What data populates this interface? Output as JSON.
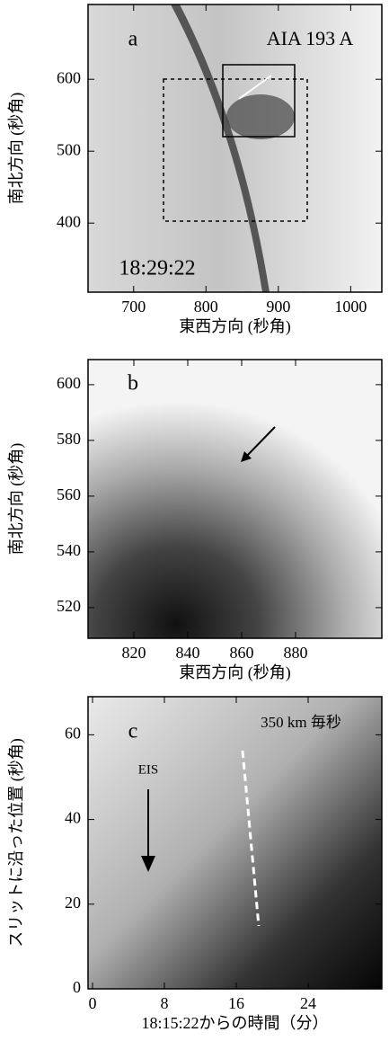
{
  "chart_data": [
    {
      "type": "image",
      "x_label": "東西方向 (秒角)",
      "y_label": "南北方向 (秒角)",
      "annotations": [
        "a",
        "AIA 193 A",
        "18:29:22"
      ],
      "xlim": [
        637,
        1043
      ],
      "ylim": [
        304,
        704
      ],
      "xticks": [
        700,
        800,
        900,
        1000
      ],
      "yticks": [
        400,
        500,
        600
      ]
    },
    {
      "type": "image",
      "x_label": "東西方向 (秒角)",
      "y_label": "南北方向 (秒角)",
      "annotations": [
        "b"
      ],
      "xlim": [
        803,
        912
      ],
      "ylim": [
        509,
        609
      ],
      "xticks": [
        820,
        840,
        860,
        880
      ],
      "yticks": [
        520,
        540,
        560,
        580,
        600
      ]
    },
    {
      "type": "image",
      "x_label": "18:15:22からの時間（分）",
      "y_label": "スリットに沿った位置 (秒角)",
      "annotations": [
        "c",
        "350 km 毎秒",
        "EIS"
      ],
      "xlim": [
        -0.5,
        32.2
      ],
      "ylim": [
        0,
        69
      ],
      "xticks": [
        0,
        8,
        16,
        24
      ],
      "yticks": [
        0,
        20,
        40,
        60
      ]
    }
  ]
}
